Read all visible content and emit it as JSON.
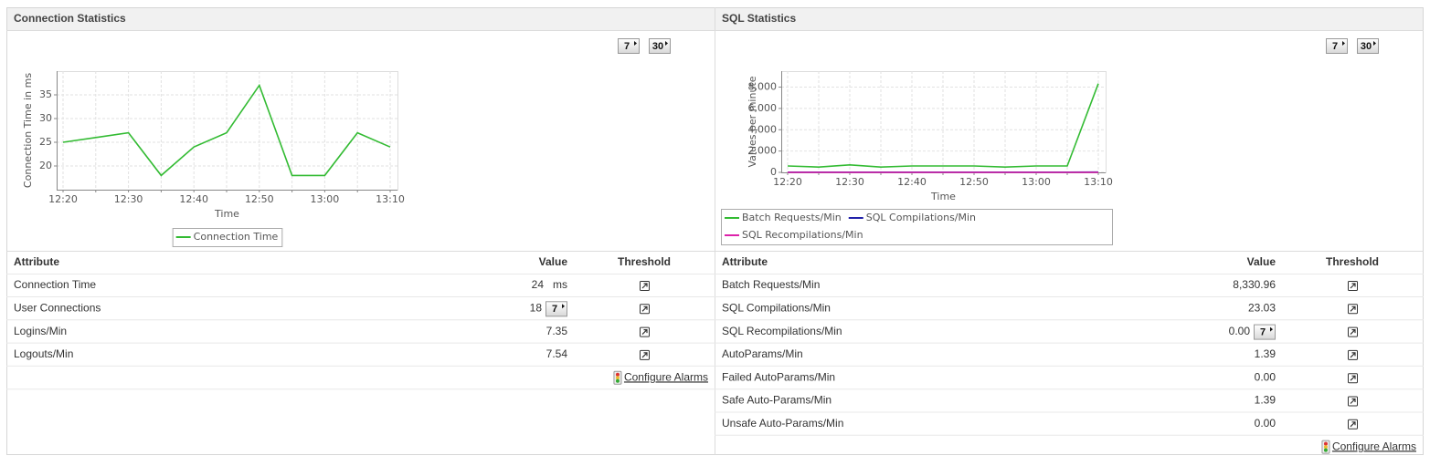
{
  "panels": [
    {
      "title": "Connection Statistics",
      "period_buttons": [
        "7",
        "30"
      ],
      "chart": {
        "type": "line",
        "y_label": "Connection Time in ms",
        "x_label": "Time",
        "categories": [
          "12:20",
          null,
          "12:30",
          null,
          "12:40",
          null,
          "12:50",
          null,
          "13:00",
          null,
          "13:10"
        ],
        "ylim": [
          15,
          40
        ],
        "yticks": [
          20,
          25,
          30,
          35
        ],
        "grid": true,
        "series": [
          {
            "name": "Connection Time",
            "color": "#33bb33",
            "values": [
              25,
              26,
              27,
              18,
              24,
              27,
              37,
              18,
              18,
              27,
              24
            ]
          }
        ]
      },
      "table": {
        "headers": [
          "Attribute",
          "Value",
          "Threshold"
        ],
        "rows": [
          {
            "attribute": "Connection Time",
            "value": "24",
            "unit": "ms"
          },
          {
            "attribute": "User Connections",
            "value": "18",
            "button": "7"
          },
          {
            "attribute": "Logins/Min",
            "value": "7.35"
          },
          {
            "attribute": "Logouts/Min",
            "value": "7.54"
          }
        ]
      },
      "footer_link": "Configure Alarms"
    },
    {
      "title": "SQL Statistics",
      "period_buttons": [
        "7",
        "30"
      ],
      "chart": {
        "type": "line",
        "y_label": "Values per minute",
        "x_label": "Time",
        "categories": [
          "12:20",
          null,
          "12:30",
          null,
          "12:40",
          null,
          "12:50",
          null,
          "13:00",
          null,
          "13:10"
        ],
        "ylim": [
          0,
          9500
        ],
        "yticks": [
          0,
          {
            "value": 2000,
            "label": "2,000"
          },
          {
            "value": 4000,
            "label": "4,000"
          },
          {
            "value": 6000,
            "label": "6,000"
          },
          {
            "value": 8000,
            "label": "8,000"
          }
        ],
        "grid": true,
        "series": [
          {
            "name": "Batch Requests/Min",
            "color": "#33bb33",
            "values": [
              600,
              500,
              700,
              500,
              600,
              600,
              600,
              500,
              600,
              600,
              8330.96
            ]
          },
          {
            "name": "SQL Compilations/Min",
            "color": "#2222aa",
            "values": [
              20,
              20,
              20,
              20,
              20,
              20,
              20,
              20,
              20,
              20,
              23.03
            ]
          },
          {
            "name": "SQL Recompilations/Min",
            "color": "#dd22aa",
            "values": [
              0,
              0,
              0,
              0,
              0,
              0,
              0,
              0,
              0,
              0,
              0
            ]
          }
        ]
      },
      "table": {
        "headers": [
          "Attribute",
          "Value",
          "Threshold"
        ],
        "rows": [
          {
            "attribute": "Batch Requests/Min",
            "value": "8,330.96"
          },
          {
            "attribute": "SQL Compilations/Min",
            "value": "23.03"
          },
          {
            "attribute": "SQL Recompilations/Min",
            "value": "0.00",
            "button": "7"
          },
          {
            "attribute": "AutoParams/Min",
            "value": "1.39"
          },
          {
            "attribute": "Failed AutoParams/Min",
            "value": "0.00"
          },
          {
            "attribute": "Safe Auto-Params/Min",
            "value": "1.39"
          },
          {
            "attribute": "Unsafe Auto-Params/Min",
            "value": "0.00"
          }
        ]
      },
      "footer_link": "Configure Alarms"
    }
  ]
}
